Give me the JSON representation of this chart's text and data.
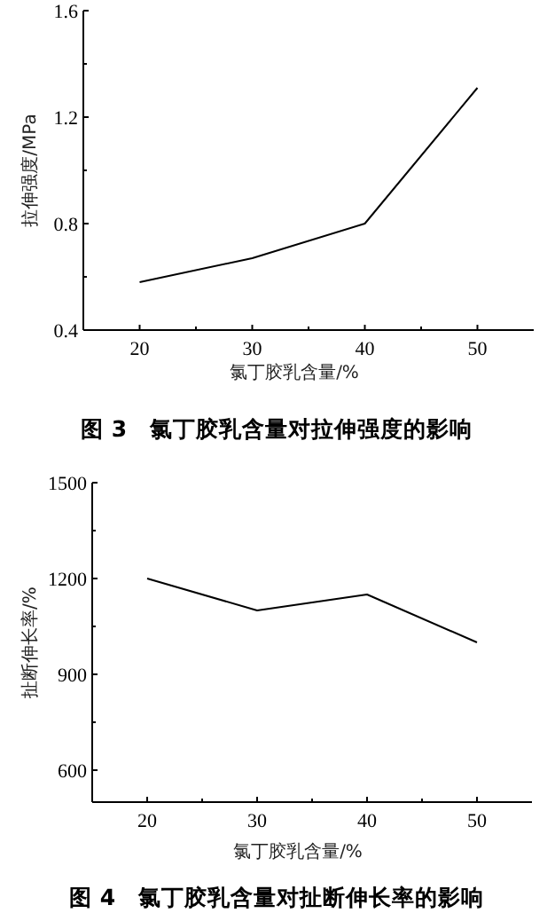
{
  "chart_data": [
    {
      "type": "line",
      "title": "图 3　氯丁胶乳含量对拉伸强度的影响",
      "xlabel": "氯丁胶乳含量/%",
      "ylabel": "拉伸强度/MPa",
      "x": [
        20,
        30,
        40,
        50
      ],
      "values": [
        0.58,
        0.67,
        0.8,
        1.31
      ],
      "color": "#000000",
      "xlim": [
        15,
        55
      ],
      "ylim": [
        0.4,
        1.6
      ],
      "xticks": [
        20,
        {
          "value": 25,
          "label": null
        },
        30,
        {
          "value": 35,
          "label": null
        },
        40,
        {
          "value": 45,
          "label": null
        },
        50
      ],
      "yticks": [
        0.4,
        {
          "value": 0.6,
          "label": null
        },
        0.8,
        {
          "value": 1.0,
          "label": null
        },
        1.2,
        {
          "value": 1.4,
          "label": null
        },
        1.6
      ]
    },
    {
      "type": "line",
      "title": "图 4　氯丁胶乳含量对扯断伸长率的影响",
      "xlabel": "氯丁胶乳含量/%",
      "ylabel": "扯断伸长率/%",
      "x": [
        20,
        30,
        40,
        50
      ],
      "values": [
        1200,
        1100,
        1150,
        1000
      ],
      "color": "#000000",
      "xlim": [
        15,
        55
      ],
      "ylim": [
        500,
        1500
      ],
      "xticks": [
        20,
        {
          "value": 25,
          "label": null
        },
        30,
        {
          "value": 35,
          "label": null
        },
        40,
        {
          "value": 45,
          "label": null
        },
        50
      ],
      "yticks": [
        600,
        {
          "value": 750,
          "label": null
        },
        900,
        {
          "value": 1050,
          "label": null
        },
        1200,
        {
          "value": 1350,
          "label": null
        },
        1500
      ]
    }
  ]
}
